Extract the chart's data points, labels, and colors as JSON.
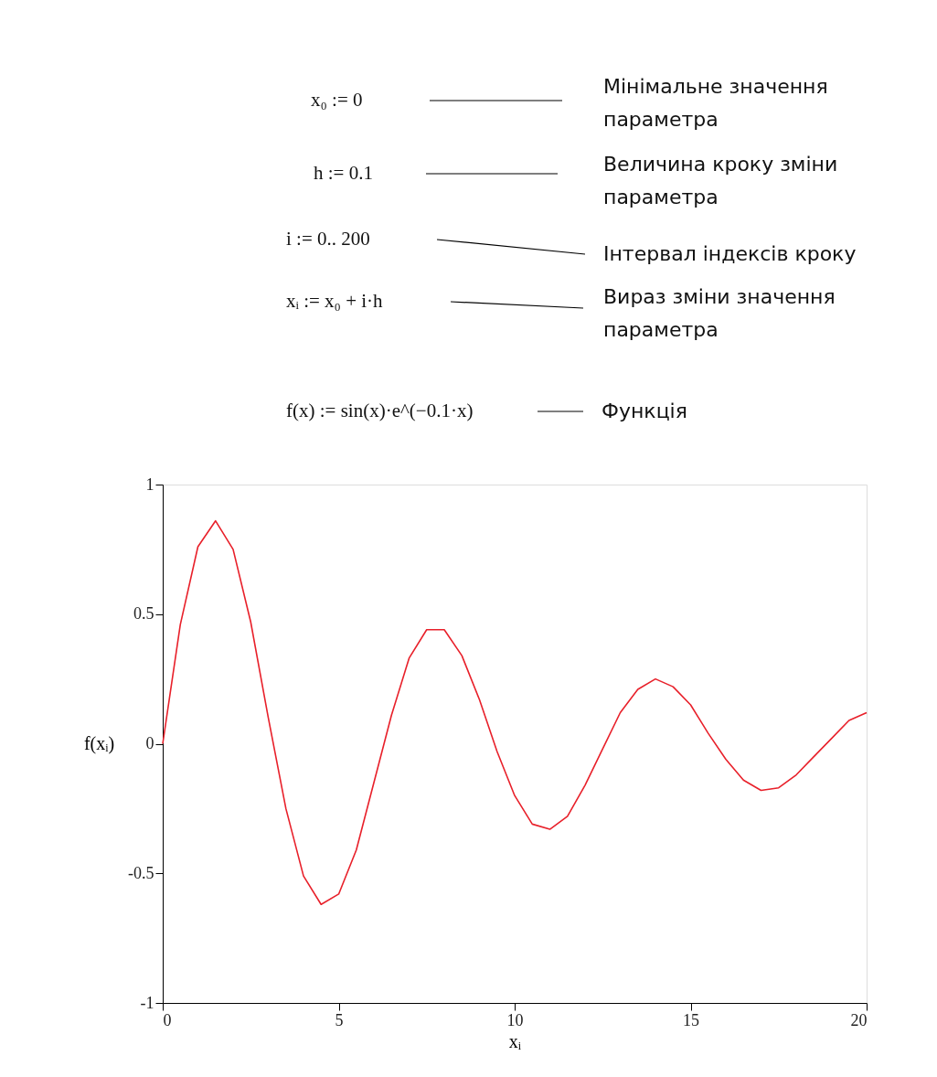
{
  "chart_data": {
    "type": "line",
    "xlabel": "xᵢ",
    "ylabel": "f(xᵢ)",
    "x": [
      0,
      0.5,
      1,
      1.5,
      2,
      2.5,
      3,
      3.5,
      4,
      4.5,
      5,
      5.5,
      6,
      6.5,
      7,
      7.5,
      8,
      8.5,
      9,
      9.5,
      10,
      10.5,
      11,
      11.5,
      12,
      12.5,
      13,
      13.5,
      14,
      14.5,
      15,
      15.5,
      16,
      16.5,
      17,
      17.5,
      18,
      18.5,
      19,
      19.5,
      20
    ],
    "series": [
      {
        "color": "#e8202a",
        "values": [
          0,
          0.46,
          0.76,
          0.86,
          0.75,
          0.47,
          0.1,
          -0.25,
          -0.51,
          -0.62,
          -0.58,
          -0.41,
          -0.15,
          0.11,
          0.33,
          0.44,
          0.44,
          0.34,
          0.17,
          -0.03,
          -0.2,
          -0.31,
          -0.33,
          -0.28,
          -0.16,
          -0.02,
          0.12,
          0.21,
          0.25,
          0.22,
          0.15,
          0.04,
          -0.06,
          -0.14,
          -0.18,
          -0.17,
          -0.12,
          -0.05,
          0.02,
          0.09,
          0.12
        ]
      }
    ],
    "xlim": [
      0,
      20
    ],
    "xticks": [
      0,
      5,
      10,
      15,
      20
    ],
    "ylim": [
      -1,
      1
    ],
    "yticks": [
      -1,
      -0.5,
      0,
      0.5,
      1
    ],
    "grid": false,
    "line_style": "solid",
    "marker": "none",
    "annotations": [
      "x₀ := 0",
      "Мінімальне значення\nпараметра",
      "h := 0.1",
      "Величина кроку зміни\nпараметра",
      "i := 0.. 200",
      "Інтервал індексів кроку",
      "xᵢ := x₀ + i·h",
      "Вираз зміни значення\nпараметра",
      "f(x) := sin(x)·e^(−0.1·x)",
      "Функція"
    ]
  }
}
